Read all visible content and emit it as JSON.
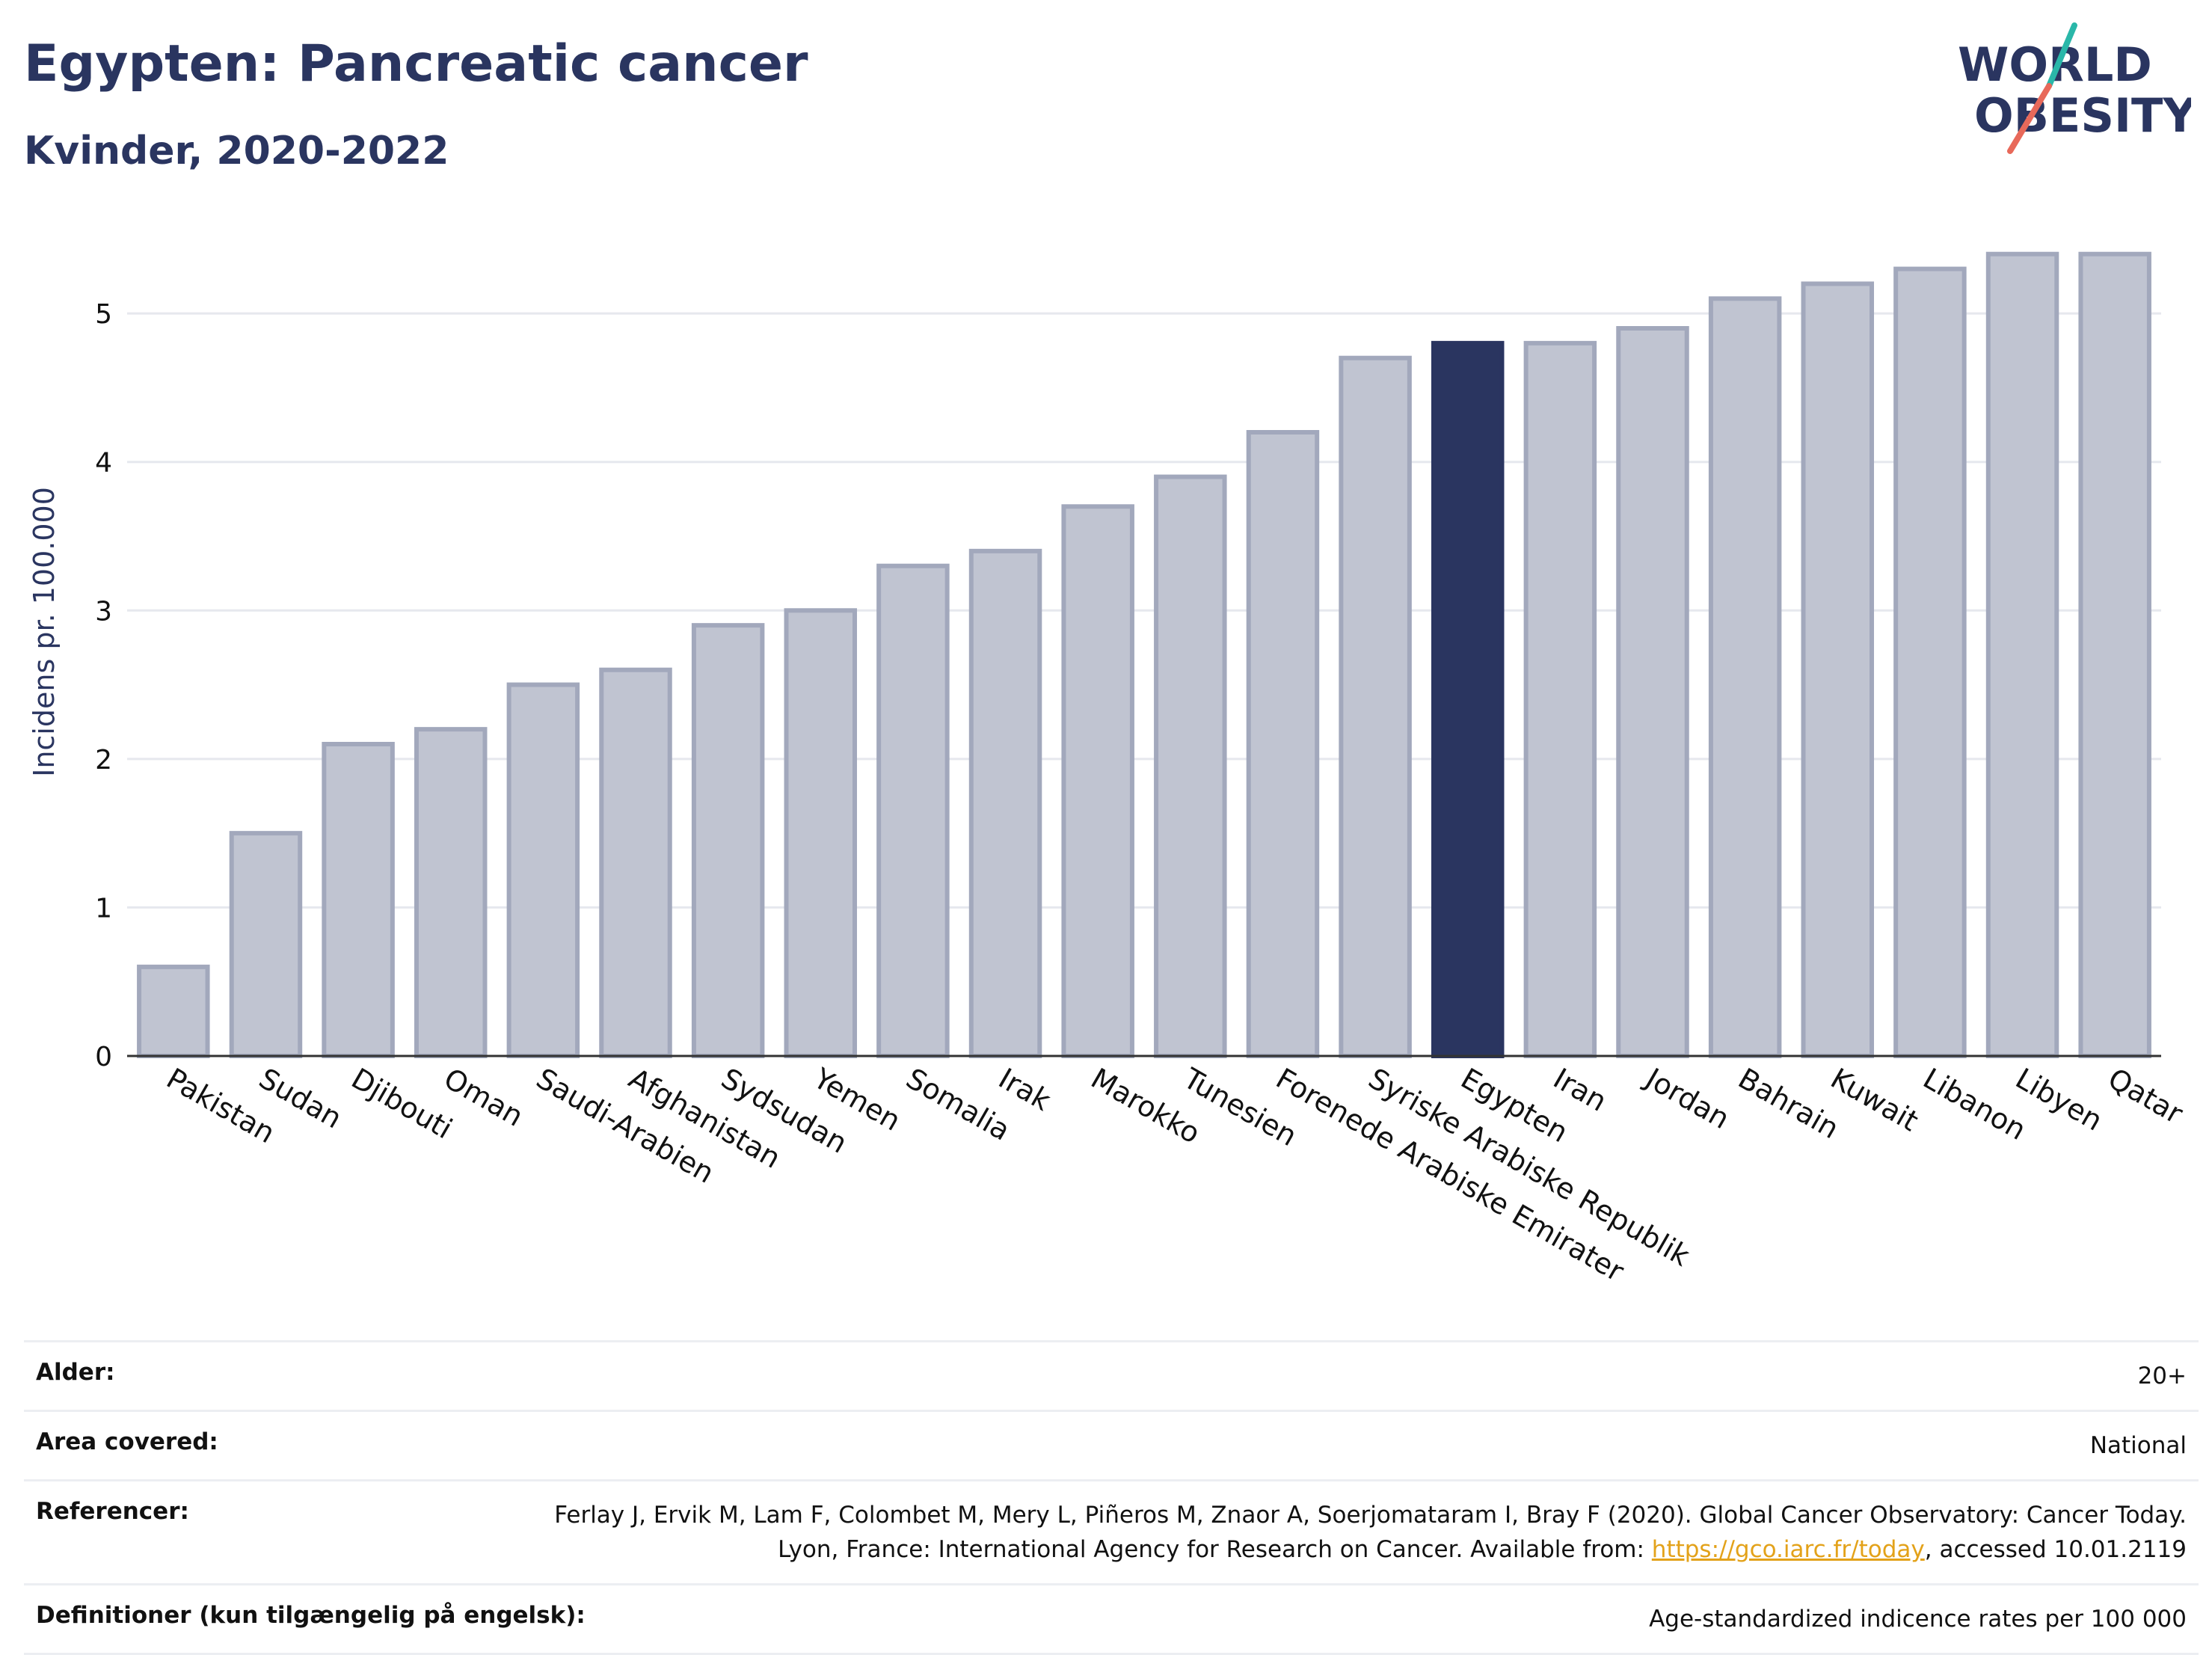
{
  "header": {
    "title": "Egypten: Pancreatic cancer",
    "subtitle": "Kvinder, 2020-2022"
  },
  "logo": {
    "line1": "WORLD",
    "line2": "OBESITY",
    "accent_colors": [
      "#2ab7a9",
      "#e8695a"
    ]
  },
  "colors": {
    "bar": "#c0c4d1",
    "bar_stroke": "#a2a8bc",
    "highlight": "#2a3560",
    "text": "#2a3560"
  },
  "chart_data": {
    "type": "bar",
    "ylabel": "Incidens pr. 100.000",
    "xlabel": "",
    "ylim": [
      0,
      5.6
    ],
    "yticks": [
      0,
      1,
      2,
      3,
      4,
      5
    ],
    "grid": true,
    "highlight": "Egypten",
    "categories": [
      "Pakistan",
      "Sudan",
      "Djibouti",
      "Oman",
      "Saudi-Arabien",
      "Afghanistan",
      "Sydsudan",
      "Yemen",
      "Somalia",
      "Irak",
      "Marokko",
      "Tunesien",
      "Forenede Arabiske Emirater",
      "Syriske Arabiske Republik",
      "Egypten",
      "Iran",
      "Jordan",
      "Bahrain",
      "Kuwait",
      "Libanon",
      "Libyen",
      "Qatar"
    ],
    "values": [
      0.6,
      1.5,
      2.1,
      2.2,
      2.5,
      2.6,
      2.9,
      3.0,
      3.3,
      3.4,
      3.7,
      3.9,
      4.2,
      4.7,
      4.8,
      4.8,
      4.9,
      5.1,
      5.2,
      5.3,
      5.4,
      5.4
    ]
  },
  "meta": {
    "age_label": "Alder:",
    "age_value": "20+",
    "area_label": "Area covered:",
    "area_value": "National",
    "ref_label": "Referencer:",
    "ref_text_1": "Ferlay J, Ervik M, Lam F, Colombet M, Mery L, Piñeros M, Znaor A, Soerjomataram I, Bray F (2020). Global Cancer Observatory: Cancer Today. Lyon, France: International Agency for Research on Cancer. Available from: ",
    "ref_link": "https://gco.iarc.fr/today",
    "ref_text_2": ", accessed 10.01.2119",
    "def_label": "Definitioner (kun tilgængelig på engelsk):",
    "def_value": "Age-standardized indicence rates per 100 000"
  }
}
